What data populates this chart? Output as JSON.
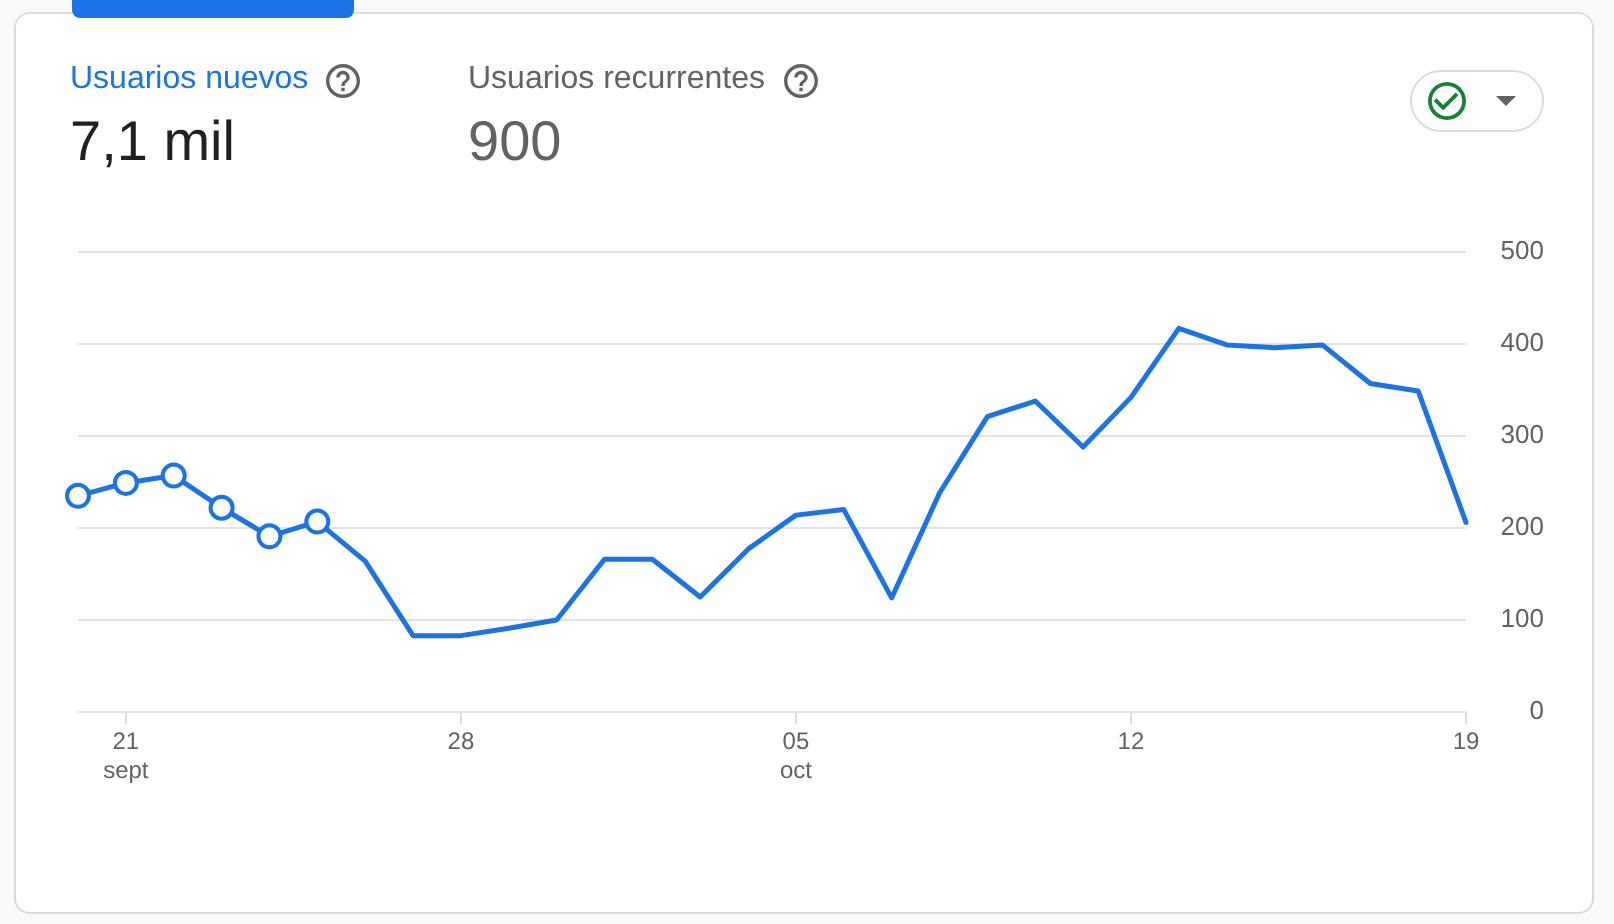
{
  "chart_data": {
    "type": "line",
    "annotations": [
      "Usuarios nuevos",
      "7,1 mil",
      "Usuarios recurrentes",
      "900"
    ],
    "series": [
      {
        "color": "#1a73e8",
        "marker": "circle",
        "x": [
          "--09-20",
          "--09-21",
          "--09-22",
          "--09-23",
          "--09-24",
          "--09-25"
        ],
        "values": [
          235,
          249,
          257,
          222,
          191,
          207
        ]
      },
      {
        "color": "#1a73e8",
        "marker": "none",
        "x": [
          "--09-25",
          "--09-26",
          "--09-27",
          "--09-28",
          "--09-29",
          "--09-30",
          "--10-01",
          "--10-02",
          "--10-03",
          "--10-04",
          "--10-05",
          "--10-06",
          "--10-07",
          "--10-08",
          "--10-09",
          "--10-10",
          "--10-11",
          "--10-12",
          "--10-13",
          "--10-14",
          "--10-15",
          "--10-16",
          "--10-17",
          "--10-18",
          "--10-19"
        ],
        "values": [
          207,
          164,
          83,
          83,
          91,
          100,
          166,
          166,
          125,
          177,
          214,
          220,
          124,
          238,
          321,
          338,
          288,
          342,
          417,
          399,
          396,
          399,
          357,
          349,
          206
        ]
      }
    ],
    "xlim": [
      "--09-20",
      "--10-19"
    ],
    "xticks": [
      {
        "value": "--09-21",
        "label": "21\nsept"
      },
      {
        "value": "--09-28",
        "label": "28"
      },
      {
        "value": "--10-05",
        "label": "05\noct"
      },
      {
        "value": "--10-12",
        "label": "12"
      },
      {
        "value": "--10-19",
        "label": "19"
      }
    ],
    "ylim": [
      0,
      500
    ],
    "yticks": [
      0,
      100,
      200,
      300,
      400,
      500
    ],
    "grid": "y"
  }
}
